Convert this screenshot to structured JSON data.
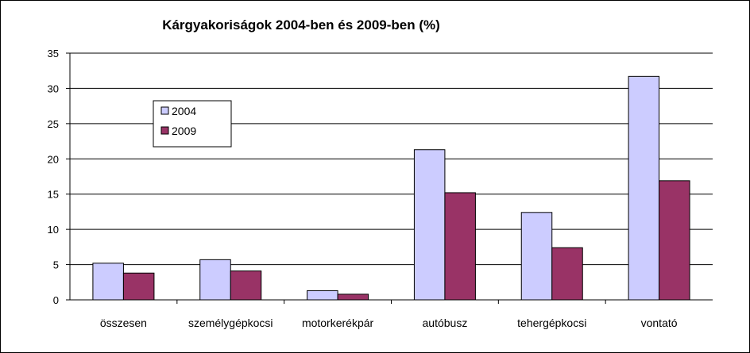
{
  "chart_data": {
    "type": "bar",
    "title": "Kárgyakoriságok 2004-ben és 2009-ben (%)",
    "categories": [
      "összesen",
      "személygépkocsi",
      "motorkerékpár",
      "autóbusz",
      "tehergépkocsi",
      "vontató"
    ],
    "series": [
      {
        "name": "2004",
        "values": [
          5.2,
          5.7,
          1.3,
          21.3,
          12.4,
          31.7
        ]
      },
      {
        "name": "2009",
        "values": [
          3.8,
          4.1,
          0.8,
          15.2,
          7.4,
          16.9
        ]
      }
    ],
    "yticks": [
      "0",
      "5",
      "10",
      "15",
      "20",
      "25",
      "30",
      "35"
    ],
    "ylim": [
      0,
      35
    ],
    "grid": true,
    "legend_position": "top-left",
    "colors": {
      "2004": "#ccccff",
      "2009": "#993366"
    }
  }
}
